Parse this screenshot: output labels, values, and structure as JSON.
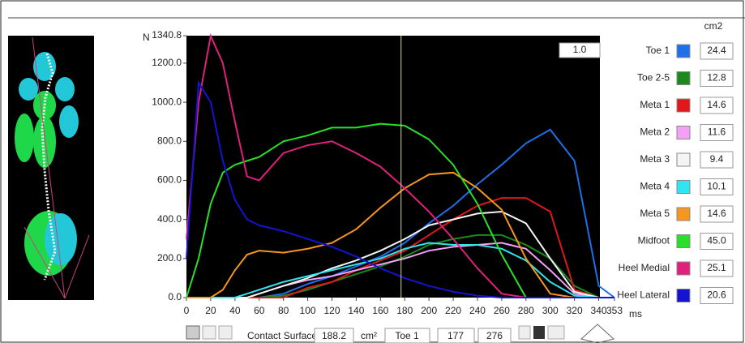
{
  "chart_data": {
    "type": "line",
    "y_label": "N",
    "x_label": "ms",
    "xlim": [
      0,
      353
    ],
    "ylim": [
      0,
      1340.8
    ],
    "xticks": [
      0,
      20,
      40,
      60,
      80,
      100,
      120,
      140,
      160,
      180,
      200,
      220,
      240,
      260,
      280,
      300,
      320,
      340,
      353
    ],
    "yticks": [
      {
        "value": 0,
        "label": "0.0"
      },
      {
        "value": 200,
        "label": "200.0"
      },
      {
        "value": 400,
        "label": "400.0"
      },
      {
        "value": 600,
        "label": "600.0"
      },
      {
        "value": 800,
        "label": "800.0"
      },
      {
        "value": 1000,
        "label": "1000.0"
      },
      {
        "value": 1200,
        "label": "1200.0"
      },
      {
        "value": 1340.8,
        "label": "1340.8"
      }
    ],
    "cursor": 177,
    "area_unit": "cm2",
    "x": [
      0,
      10,
      20,
      30,
      40,
      50,
      60,
      80,
      100,
      120,
      140,
      160,
      180,
      200,
      220,
      240,
      260,
      280,
      300,
      320,
      340,
      353
    ],
    "series": [
      {
        "name": "Toe 1",
        "color": "#1e6fe8",
        "area": "24.4",
        "values": [
          0,
          0,
          0,
          0,
          0,
          0,
          0,
          20,
          70,
          110,
          160,
          210,
          280,
          380,
          470,
          580,
          680,
          790,
          860,
          700,
          60,
          0
        ]
      },
      {
        "name": "Toe 2-5",
        "color": "#1a8a1a",
        "area": "12.8",
        "values": [
          0,
          0,
          0,
          0,
          0,
          0,
          0,
          10,
          40,
          80,
          120,
          160,
          210,
          270,
          300,
          320,
          320,
          270,
          200,
          60,
          0,
          0
        ]
      },
      {
        "name": "Meta 1",
        "color": "#e01818",
        "area": "14.6",
        "values": [
          0,
          0,
          0,
          0,
          0,
          0,
          0,
          0,
          50,
          80,
          140,
          190,
          240,
          320,
          400,
          470,
          510,
          510,
          440,
          40,
          0,
          0
        ]
      },
      {
        "name": "Meta 2",
        "color": "#f5a0f5",
        "area": "11.6",
        "values": [
          0,
          0,
          0,
          0,
          0,
          0,
          20,
          60,
          90,
          110,
          140,
          170,
          200,
          240,
          260,
          270,
          280,
          250,
          140,
          20,
          0,
          0
        ]
      },
      {
        "name": "Meta 3",
        "color": "#f4f4f4",
        "area": "9.4",
        "values": [
          0,
          0,
          0,
          0,
          0,
          0,
          20,
          60,
          100,
          150,
          190,
          240,
          300,
          370,
          400,
          430,
          440,
          380,
          200,
          30,
          0,
          0
        ]
      },
      {
        "name": "Meta 4",
        "color": "#2ee6f0",
        "area": "10.1",
        "values": [
          0,
          0,
          0,
          0,
          0,
          20,
          40,
          80,
          110,
          140,
          170,
          200,
          250,
          280,
          270,
          270,
          250,
          190,
          80,
          10,
          0,
          0
        ]
      },
      {
        "name": "Meta 5",
        "color": "#f5961e",
        "area": "14.6",
        "values": [
          0,
          0,
          0,
          40,
          140,
          220,
          240,
          230,
          250,
          280,
          350,
          460,
          560,
          630,
          640,
          560,
          450,
          200,
          20,
          0,
          0,
          0
        ]
      },
      {
        "name": "Midfoot",
        "color": "#28e028",
        "area": "45.0",
        "values": [
          0,
          200,
          480,
          640,
          680,
          700,
          720,
          800,
          830,
          870,
          870,
          890,
          880,
          810,
          680,
          480,
          220,
          0,
          0,
          0,
          0,
          0
        ]
      },
      {
        "name": "Heel Medial",
        "color": "#e0207a",
        "area": "25.1",
        "values": [
          300,
          1000,
          1340,
          1200,
          900,
          620,
          600,
          740,
          780,
          800,
          740,
          670,
          560,
          440,
          300,
          150,
          20,
          0,
          0,
          0,
          0,
          0
        ]
      },
      {
        "name": "Heel Lateral",
        "color": "#1414d0",
        "area": "20.6",
        "values": [
          200,
          1100,
          1000,
          700,
          500,
          400,
          370,
          340,
          300,
          260,
          210,
          150,
          100,
          60,
          30,
          10,
          0,
          0,
          0,
          0,
          0,
          0
        ]
      }
    ]
  },
  "toolbar": {
    "scale": "1.0",
    "label": "Contact Surface",
    "surface": "188.2",
    "unit": "cm²",
    "zone": "Toe 1",
    "end": "276"
  }
}
